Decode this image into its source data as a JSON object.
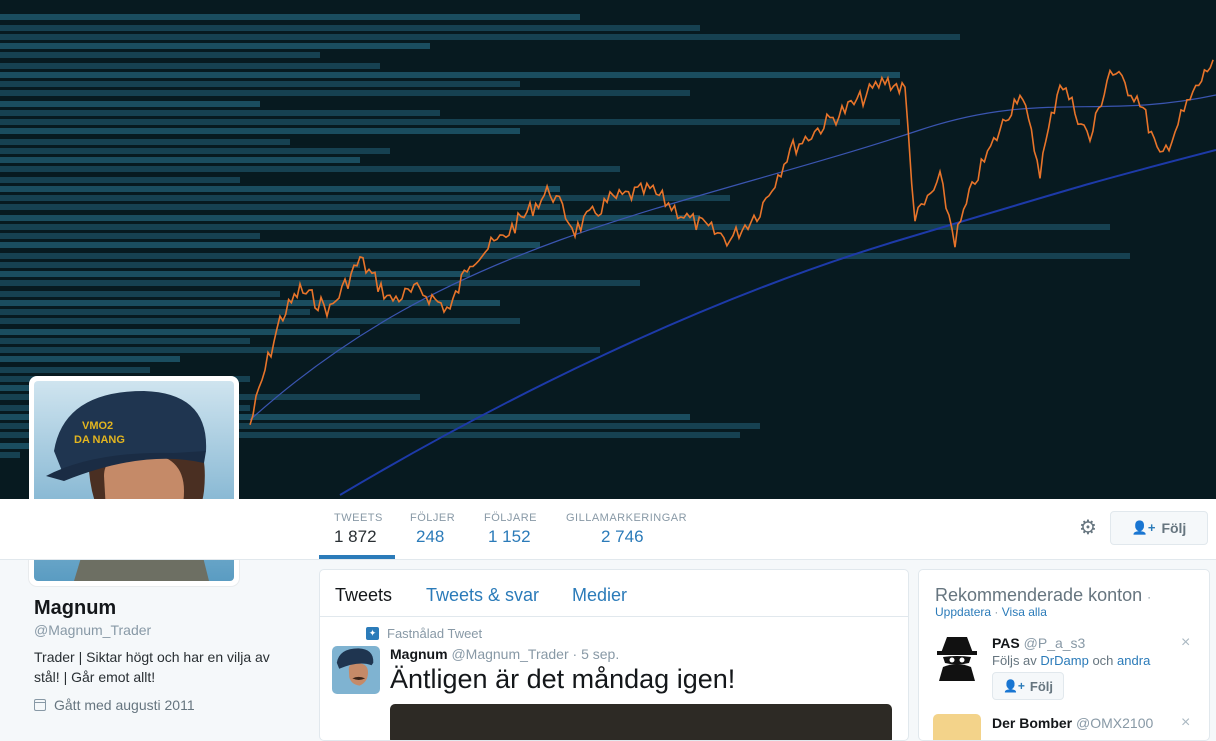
{
  "profile": {
    "name": "Magnum",
    "handle": "@Magnum_Trader",
    "bio": "Trader | Siktar högt och har en vilja av stål! | Går emot allt!",
    "joined": "Gått med augusti 2011"
  },
  "nav": {
    "stats": [
      {
        "label": "TWEETS",
        "value": "1 872"
      },
      {
        "label": "FÖLJER",
        "value": "248"
      },
      {
        "label": "FÖLJARE",
        "value": "1 152"
      },
      {
        "label": "GILLAMARKERINGAR",
        "value": "2 746"
      }
    ],
    "follow_label": "Följ",
    "settings_icon": "gear-icon"
  },
  "timeline": {
    "tabs": [
      "Tweets",
      "Tweets & svar",
      "Medier"
    ],
    "pinned_label": "Fastnålad Tweet",
    "tweet": {
      "name": "Magnum",
      "handle": "@Magnum_Trader",
      "time": "5 sep.",
      "text": "Äntligen är det måndag igen!"
    }
  },
  "sidebar": {
    "title": "Rekommenderade konton",
    "separator": "·",
    "update_link": "Uppdatera",
    "view_all_link": "Visa alla",
    "accounts": [
      {
        "name": "PAS",
        "handle": "@P_a_s3",
        "followed_by_prefix": "Följs av",
        "followed_by_user": "DrDamp",
        "followed_by_join": "och",
        "followed_by_others": "andra",
        "follow_label": "Följ"
      },
      {
        "name": "Der Bomber",
        "handle": "@OMX2100"
      }
    ],
    "dismiss": "×"
  },
  "colors": {
    "banner_bg": "#071a20",
    "banner_bars": "#1d5366",
    "price_line": "#e8742a",
    "accent": "#2b7bb9"
  }
}
